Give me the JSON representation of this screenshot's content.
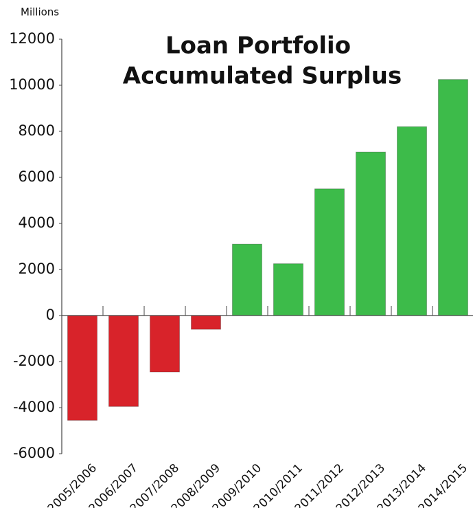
{
  "chart_data": {
    "type": "bar",
    "title_lines": [
      "Loan Portfolio",
      "Accumulated Surplus"
    ],
    "y_axis_label": "Millions",
    "categories": [
      "2005/2006",
      "2006/2007",
      "2007/2008",
      "2008/2009",
      "2009/2010",
      "2010/2011",
      "2011/2012",
      "2012/2013",
      "2013/2014",
      "2014/2015"
    ],
    "values": [
      -4550,
      -3950,
      -2450,
      -600,
      3100,
      2250,
      5500,
      7100,
      8200,
      10250
    ],
    "colors": [
      "#d8232a",
      "#d8232a",
      "#d8232a",
      "#d8232a",
      "#3dbb4a",
      "#3dbb4a",
      "#3dbb4a",
      "#3dbb4a",
      "#3dbb4a",
      "#3dbb4a"
    ],
    "ylim": [
      -6000,
      12000
    ],
    "yticks": [
      -6000,
      -4000,
      -2000,
      0,
      2000,
      4000,
      6000,
      8000,
      10000,
      12000
    ],
    "grid": false
  }
}
